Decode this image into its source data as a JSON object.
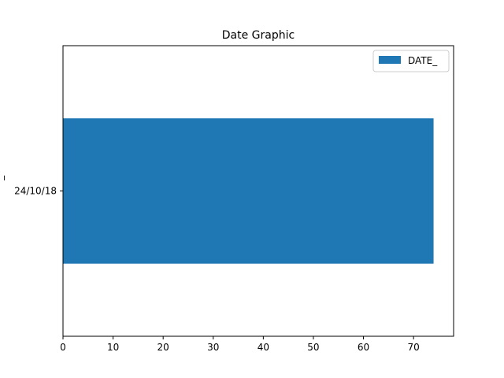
{
  "chart_data": {
    "type": "bar",
    "orientation": "horizontal",
    "title": "Date Graphic",
    "ylabel": "_",
    "xlabel": "",
    "categories": [
      "24/10/18"
    ],
    "series": [
      {
        "name": "DATE_",
        "values": [
          74
        ]
      }
    ],
    "xlim": [
      0,
      78
    ],
    "xticks": [
      0,
      10,
      20,
      30,
      40,
      50,
      60,
      70
    ],
    "grid": false,
    "legend_position": "top-right",
    "bar_color": "#1f77b4"
  }
}
